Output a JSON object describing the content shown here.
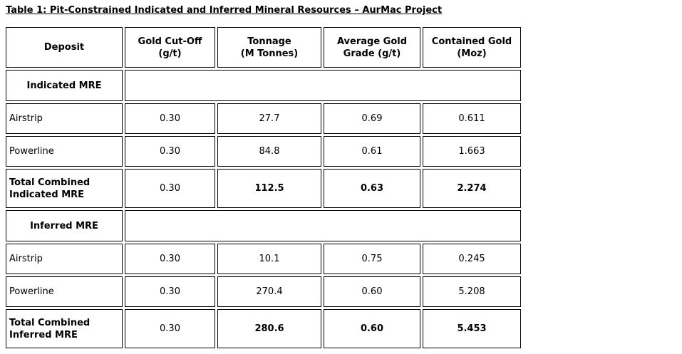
{
  "title": "Table 1: Pit-Constrained Indicated and Inferred Mineral Resources – AurMac Project",
  "table": {
    "columns": [
      {
        "line1": "Deposit",
        "line2": ""
      },
      {
        "line1": "Gold Cut-Off",
        "line2": "(g/t)"
      },
      {
        "line1": "Tonnage",
        "line2": "(M Tonnes)"
      },
      {
        "line1": "Average Gold",
        "line2": "Grade (g/t)"
      },
      {
        "line1": "Contained Gold",
        "line2": "(Moz)"
      }
    ],
    "sections": [
      {
        "header": "Indicated MRE",
        "rows": [
          {
            "deposit": "Airstrip",
            "cutoff": "0.30",
            "tonnage": "27.7",
            "grade": "0.69",
            "contained": "0.611"
          },
          {
            "deposit": "Powerline",
            "cutoff": "0.30",
            "tonnage": "84.8",
            "grade": "0.61",
            "contained": "1.663"
          }
        ],
        "total": {
          "label_line1": "Total Combined",
          "label_line2": "Indicated MRE",
          "cutoff": "0.30",
          "tonnage": "112.5",
          "grade": "0.63",
          "contained": "2.274"
        }
      },
      {
        "header": "Inferred MRE",
        "rows": [
          {
            "deposit": "Airstrip",
            "cutoff": "0.30",
            "tonnage": "10.1",
            "grade": "0.75",
            "contained": "0.245"
          },
          {
            "deposit": "Powerline",
            "cutoff": "0.30",
            "tonnage": "270.4",
            "grade": "0.60",
            "contained": "5.208"
          }
        ],
        "total": {
          "label_line1": "Total Combined",
          "label_line2": "Inferred MRE",
          "cutoff": "0.30",
          "tonnage": "280.6",
          "grade": "0.60",
          "contained": "5.453"
        }
      }
    ]
  },
  "colors": {
    "text": "#000000",
    "border": "#000000",
    "background": "#ffffff"
  }
}
